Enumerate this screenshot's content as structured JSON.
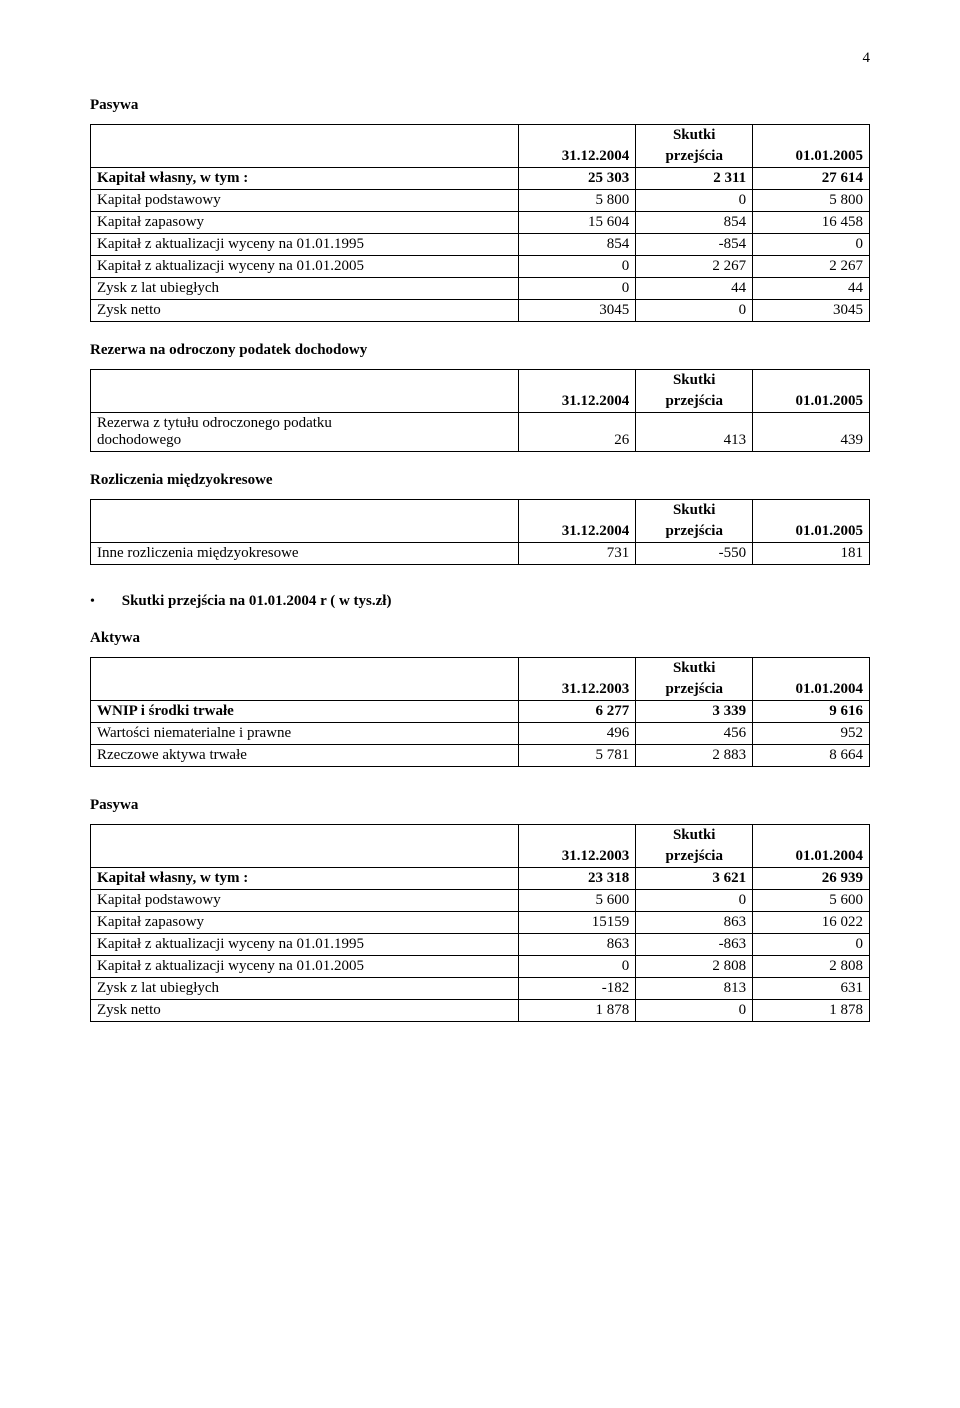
{
  "page_number": "4",
  "sections": {
    "pasywa1": {
      "title": "Pasywa",
      "headers": {
        "c1": "31.12.2004",
        "c2_top": "Skutki",
        "c2_bot": "przejścia",
        "c3": "01.01.2005"
      },
      "rows": [
        {
          "label": "Kapitał własny, w tym :",
          "v1": "25 303",
          "v2": "2 311",
          "v3": "27 614",
          "bold": true
        },
        {
          "label": "Kapitał podstawowy",
          "v1": "5 800",
          "v2": "0",
          "v3": "5 800"
        },
        {
          "label": "Kapitał zapasowy",
          "v1": "15 604",
          "v2": "854",
          "v3": "16 458"
        },
        {
          "label": "Kapitał z aktualizacji wyceny na 01.01.1995",
          "v1": "854",
          "v2": "-854",
          "v3": "0"
        },
        {
          "label": "Kapitał z aktualizacji wyceny na 01.01.2005",
          "v1": "0",
          "v2": "2 267",
          "v3": "2 267"
        },
        {
          "label": "Zysk z lat ubiegłych",
          "v1": "0",
          "v2": "44",
          "v3": "44"
        },
        {
          "label": "Zysk netto",
          "v1": "3045",
          "v2": "0",
          "v3": "3045"
        }
      ]
    },
    "rezerwa": {
      "title": "Rezerwa na odroczony podatek dochodowy",
      "headers": {
        "c1": "31.12.2004",
        "c2_top": "Skutki",
        "c2_bot": "przejścia",
        "c3": "01.01.2005"
      },
      "row": {
        "label_l1": "Rezerwa z tytułu odroczonego podatku",
        "label_l2": "dochodowego",
        "v1": "26",
        "v2": "413",
        "v3": "439"
      }
    },
    "rozliczenia": {
      "title": "Rozliczenia międzyokresowe",
      "headers": {
        "c1": "31.12.2004",
        "c2_top": "Skutki",
        "c2_bot": "przejścia",
        "c3": "01.01.2005"
      },
      "row": {
        "label": "Inne rozliczenia międzyokresowe",
        "v1": "731",
        "v2": "-550",
        "v3": "181"
      }
    },
    "bullet": {
      "text": "Skutki przejścia na 01.01.2004 r ( w tys.zł)"
    },
    "aktywa": {
      "title": "Aktywa",
      "headers": {
        "c1": "31.12.2003",
        "c2_top": "Skutki",
        "c2_bot": "przejścia",
        "c3": "01.01.2004"
      },
      "rows": [
        {
          "label": "WNIP i środki trwałe",
          "v1": "6 277",
          "v2": "3 339",
          "v3": "9 616",
          "bold": true
        },
        {
          "label": "Wartości niematerialne i prawne",
          "v1": "496",
          "v2": "456",
          "v3": "952"
        },
        {
          "label": "Rzeczowe aktywa trwałe",
          "v1": "5 781",
          "v2": "2 883",
          "v3": "8 664"
        }
      ]
    },
    "pasywa2": {
      "title": "Pasywa",
      "headers": {
        "c1": "31.12.2003",
        "c2_top": "Skutki",
        "c2_bot": "przejścia",
        "c3": "01.01.2004"
      },
      "rows": [
        {
          "label": "Kapitał własny, w tym :",
          "v1": "23 318",
          "v2": "3 621",
          "v3": "26 939",
          "bold": true
        },
        {
          "label": "Kapitał podstawowy",
          "v1": "5 600",
          "v2": "0",
          "v3": "5 600"
        },
        {
          "label": "Kapitał zapasowy",
          "v1": "15159",
          "v2": "863",
          "v3": "16 022"
        },
        {
          "label": "Kapitał z aktualizacji wyceny na 01.01.1995",
          "v1": "863",
          "v2": "-863",
          "v3": "0"
        },
        {
          "label": "Kapitał z aktualizacji wyceny na 01.01.2005",
          "v1": "0",
          "v2": "2 808",
          "v3": "2 808"
        },
        {
          "label": "Zysk z lat ubiegłych",
          "v1": "-182",
          "v2": "813",
          "v3": "631"
        },
        {
          "label": "Zysk netto",
          "v1": "1 878",
          "v2": "0",
          "v3": "1 878"
        }
      ]
    }
  }
}
